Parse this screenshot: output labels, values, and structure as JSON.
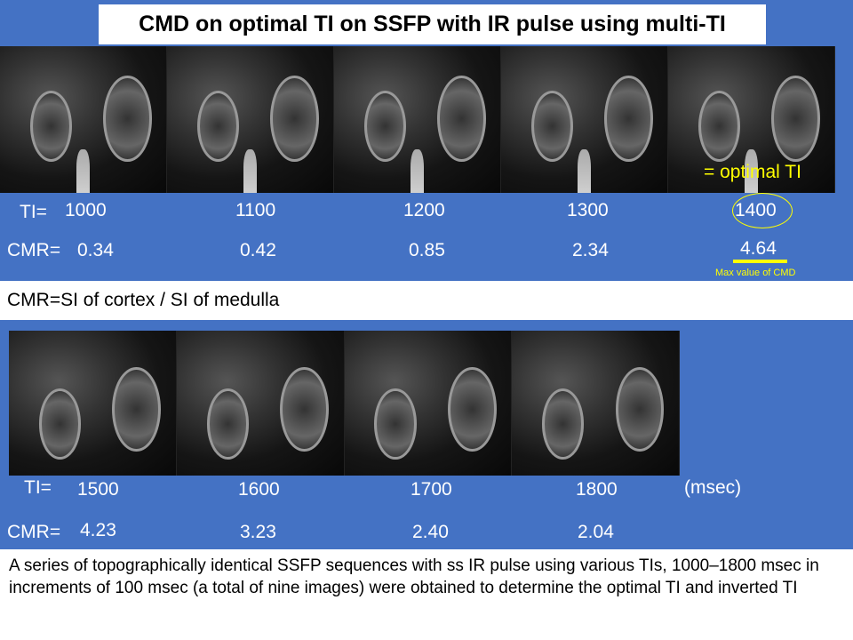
{
  "title": "CMD on optimal TI on SSFP with IR pulse using multi-TI",
  "row1": {
    "ti_label": "TI=",
    "cmr_label": "CMR=",
    "ti": [
      "1000",
      "1100",
      "1200",
      "1300",
      "1400"
    ],
    "cmr": [
      "0.34",
      "0.42",
      "0.85",
      "2.34",
      "4.64"
    ],
    "optimal_label": "= optimal TI",
    "max_note": "Max value of CMD"
  },
  "formula": "CMR=SI of cortex / SI of medulla",
  "row2": {
    "ti_label": "TI=",
    "cmr_label": "CMR=",
    "ti": [
      "1500",
      "1600",
      "1700",
      "1800"
    ],
    "cmr": [
      "4.23",
      "3.23",
      "2.40",
      "2.04"
    ],
    "unit": "(msec)"
  },
  "description": "A series of topographically identical SSFP sequences with ss IR pulse using various TIs, 1000–1800 msec in increments of 100 msec (a total of nine images) were obtained to determine the optimal TI and inverted TI",
  "colors": {
    "background": "#4472C4",
    "highlight": "#FFFF00"
  }
}
